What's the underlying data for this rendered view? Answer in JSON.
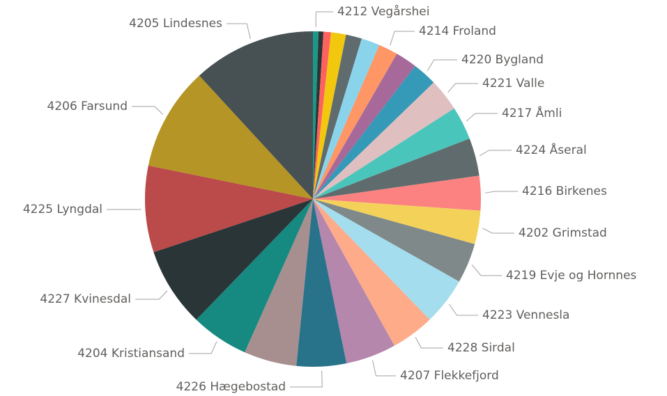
{
  "chart_data": {
    "type": "pie",
    "categories": [
      "4212 Vegårshei",
      null,
      null,
      null,
      null,
      null,
      "4214 Froland",
      null,
      "4220 Bygland",
      "4221 Valle",
      "4217 Åmli",
      "4224 Åseral",
      "4216 Birkenes",
      "4202 Grimstad",
      "4219 Evje og Hornnes",
      "4223 Vennesla",
      "4228 Sirdal",
      "4207 Flekkefjord",
      "4226 Hægebostad",
      null,
      "4204 Kristiansand",
      "4227 Kvinesdal",
      "4225 Lyngdal",
      "4206 Farsund",
      "4205 Lindesnes"
    ],
    "values": [
      0.53,
      0.47,
      0.72,
      1.44,
      1.53,
      1.78,
      1.86,
      2.08,
      2.36,
      3.14,
      3.22,
      3.64,
      3.33,
      3.22,
      3.86,
      4.58,
      4.17,
      4.86,
      4.78,
      5.08,
      5.56,
      7.64,
      8.33,
      9.97,
      11.83
    ],
    "colors": [
      "#1a9988",
      "#2d3436",
      "#fd625e",
      "#f2c80f",
      "#5f6b6d",
      "#8ad4eb",
      "#fe9666",
      "#a66999",
      "#3599b8",
      "#dfbfbf",
      "#4ac5bb",
      "#5f6b6d",
      "#fb8281",
      "#f4d25a",
      "#7f898a",
      "#a4ddee",
      "#fdab89",
      "#b687ac",
      "#28738a",
      "#a78f8f",
      "#168980",
      "#293537",
      "#bb4a4a",
      "#b59525",
      "#475052"
    ]
  }
}
